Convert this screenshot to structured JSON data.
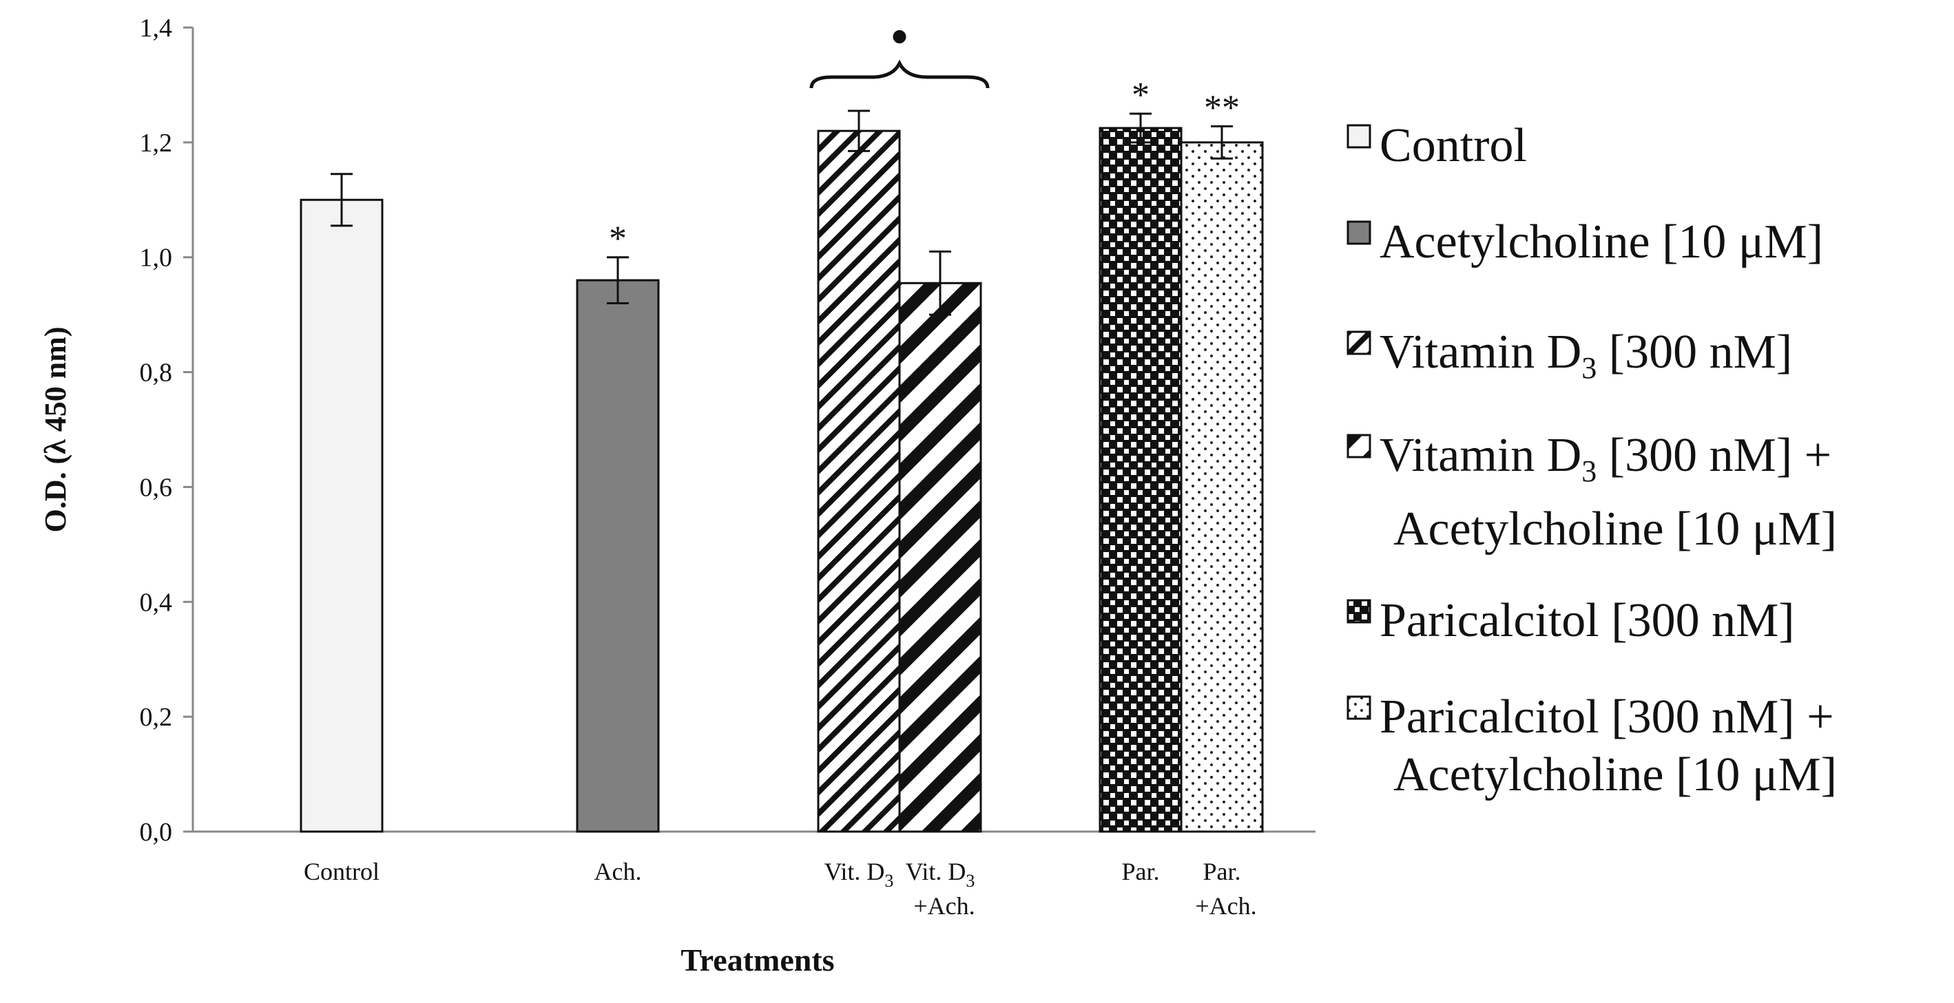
{
  "chart_data": {
    "type": "bar",
    "xlabel": "Treatments",
    "ylabel": "O.D. (λ 450 nm)",
    "ylim": [
      0,
      1.4
    ],
    "yticks": [
      "0,0",
      "0,2",
      "0,4",
      "0,6",
      "0,8",
      "1,0",
      "1,2",
      "1,4"
    ],
    "series": [
      {
        "name": "Control",
        "label_line1": "Control",
        "label_line2": "",
        "value": 1.1,
        "error": 0.045,
        "annotation": "",
        "pattern": "plain-light"
      },
      {
        "name": "Ach.",
        "label_line1": "Ach.",
        "label_line2": "",
        "value": 0.96,
        "error": 0.04,
        "annotation": "*",
        "pattern": "solid-grey"
      },
      {
        "name": "Vit. D3",
        "label_line1": "Vit. D",
        "label_sub": "3",
        "label_line2": "",
        "value": 1.22,
        "error": 0.035,
        "annotation": "",
        "pattern": "fine-diagonal"
      },
      {
        "name": "Vit. D3 + Ach.",
        "label_line1": "Vit. D",
        "label_sub": "3",
        "label_line2": "+Ach.",
        "value": 0.955,
        "error": 0.055,
        "annotation": "",
        "pattern": "wide-diagonal"
      },
      {
        "name": "Par.",
        "label_line1": "Par.",
        "label_line2": "",
        "value": 1.225,
        "error": 0.025,
        "annotation": "*",
        "pattern": "checker"
      },
      {
        "name": "Par. + Ach.",
        "label_line1": "Par.",
        "label_line2": "+Ach.",
        "value": 1.2,
        "error": 0.028,
        "annotation": "**",
        "pattern": "dots"
      }
    ],
    "group_marker": "•"
  },
  "legend": [
    {
      "line1": "Control",
      "sub": "",
      "line1b": "",
      "line2": "",
      "pattern": "plain-light"
    },
    {
      "line1": "Acetylcholine [10 μM]",
      "sub": "",
      "line1b": "",
      "line2": "",
      "pattern": "solid-grey"
    },
    {
      "line1": "Vitamin D",
      "sub": "3",
      "line1b": " [300 nM]",
      "line2": "",
      "pattern": "fine-diagonal"
    },
    {
      "line1": "Vitamin D",
      "sub": "3",
      "line1b": " [300 nM] +",
      "line2": "Acetylcholine [10 μM]",
      "pattern": "wide-diagonal"
    },
    {
      "line1": "Paricalcitol [300 nM]",
      "sub": "",
      "line1b": "",
      "line2": "",
      "pattern": "checker"
    },
    {
      "line1": "Paricalcitol [300 nM] +",
      "sub": "",
      "line1b": "",
      "line2": "Acetylcholine [10 μM]",
      "pattern": "dots"
    }
  ]
}
